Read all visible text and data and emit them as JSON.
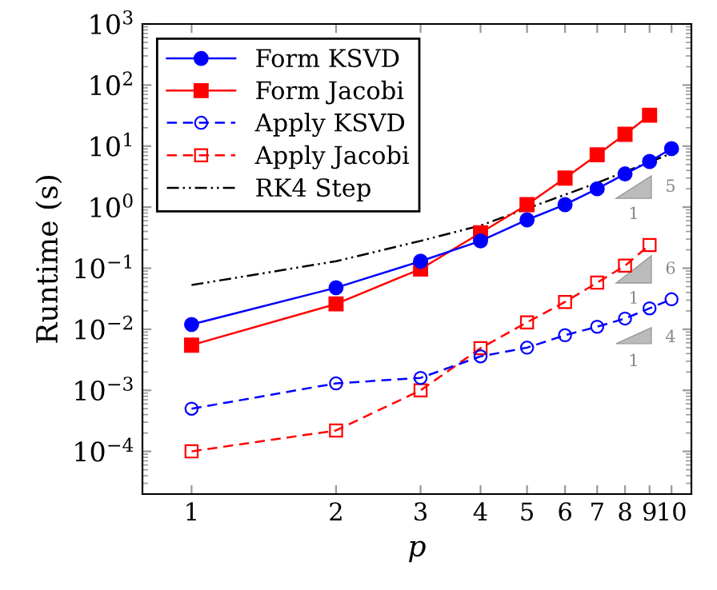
{
  "chart_data": {
    "type": "line",
    "xlabel": "p",
    "ylabel": "Runtime (s)",
    "log": "xy",
    "legend": "top left",
    "grid": false,
    "xlim": [
      0.79,
      11
    ],
    "xticks": [
      1,
      2,
      3,
      4,
      5,
      6,
      7,
      8,
      9,
      10
    ],
    "ylim": [
      2e-05,
      1000
    ],
    "yticks": [
      {
        "value": 0.0001,
        "label": "10$^{−4}$"
      },
      {
        "value": 0.001,
        "label": "10$^{−3}$"
      },
      {
        "value": 0.01,
        "label": "10$^{−2}$"
      },
      {
        "value": 0.1,
        "label": "10$^{−1}$"
      },
      {
        "value": 1,
        "label": "10$^{0}$"
      },
      {
        "value": 10,
        "label": "10$^{1}$"
      },
      {
        "value": 100,
        "label": "10$^{2}$"
      },
      {
        "value": 1000,
        "label": "10$^{3}$"
      }
    ],
    "series": [
      {
        "name": "Form KSVD",
        "color": "#0000ff",
        "marker": "circle",
        "line_style": "solid",
        "x": [
          1,
          2,
          3,
          4,
          5,
          6,
          7,
          8,
          9,
          10
        ],
        "values": [
          0.012,
          0.048,
          0.13,
          0.28,
          0.62,
          1.1,
          2.0,
          3.5,
          5.6,
          9.1
        ]
      },
      {
        "name": "Form Jacobi",
        "color": "#ff0000",
        "marker": "square",
        "line_style": "solid",
        "x": [
          1,
          2,
          3,
          4,
          5,
          6,
          7,
          8,
          9
        ],
        "values": [
          0.0055,
          0.026,
          0.097,
          0.38,
          1.1,
          3.0,
          7.2,
          15.6,
          32
        ]
      },
      {
        "name": "Apply KSVD",
        "color": "#0000ff",
        "marker": "circle",
        "line_style": "dashed",
        "x": [
          1,
          2,
          3,
          4,
          5,
          6,
          7,
          8,
          9,
          10
        ],
        "values": [
          0.0005,
          0.0013,
          0.0016,
          0.0036,
          0.005,
          0.008,
          0.011,
          0.015,
          0.022,
          0.031
        ]
      },
      {
        "name": "Apply Jacobi",
        "color": "#ff0000",
        "marker": "square",
        "line_style": "dashed",
        "x": [
          1,
          2,
          3,
          4,
          5,
          6,
          7,
          8,
          9
        ],
        "values": [
          0.0001,
          0.00022,
          0.001,
          0.0049,
          0.013,
          0.028,
          0.058,
          0.11,
          0.24
        ]
      },
      {
        "name": "RK4 Step",
        "color": "#000000",
        "marker": "none",
        "line_style": "dashdot",
        "x": [
          1,
          2,
          3,
          4,
          5,
          6,
          7,
          8,
          9,
          10
        ],
        "values": [
          0.053,
          0.13,
          0.28,
          0.5,
          0.95,
          1.6,
          2.5,
          3.8,
          5.5,
          7.6
        ]
      }
    ],
    "annotations": [
      "5",
      "1",
      "6",
      "1",
      "4",
      "1"
    ]
  }
}
